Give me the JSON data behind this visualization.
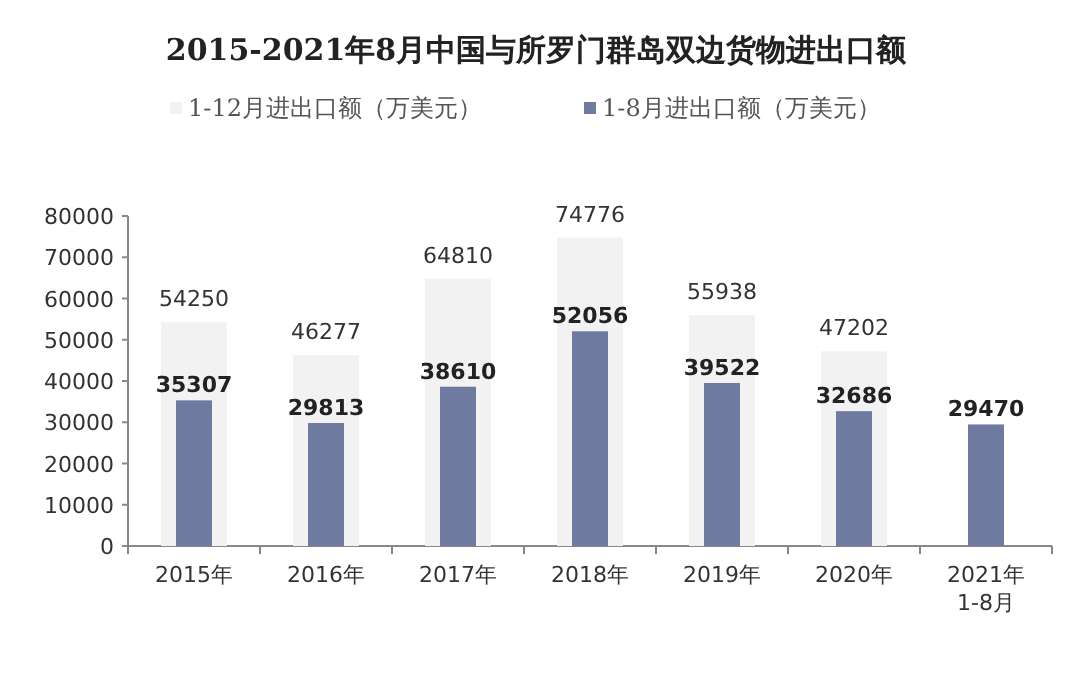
{
  "chart_data": {
    "type": "bar",
    "title": "2015-2021年8月中国与所罗门群岛双边货物进出口额",
    "categories": [
      "2015年",
      "2016年",
      "2017年",
      "2018年",
      "2019年",
      "2020年",
      "2021年 1-8月"
    ],
    "series": [
      {
        "name": "1-12月进出口额（万美元）",
        "color": "#f2f2f2",
        "values": [
          54250,
          46277,
          64810,
          74776,
          55938,
          47202,
          null
        ]
      },
      {
        "name": "1-8月进出口额（万美元）",
        "color": "#6f7aa0",
        "values": [
          35307,
          29813,
          38610,
          52056,
          39522,
          32686,
          29470
        ]
      }
    ],
    "ylim": [
      0,
      80000
    ],
    "yticks": [
      0,
      10000,
      20000,
      30000,
      40000,
      50000,
      60000,
      70000,
      80000
    ],
    "data_labels": true,
    "legend": "top",
    "grid": false
  }
}
